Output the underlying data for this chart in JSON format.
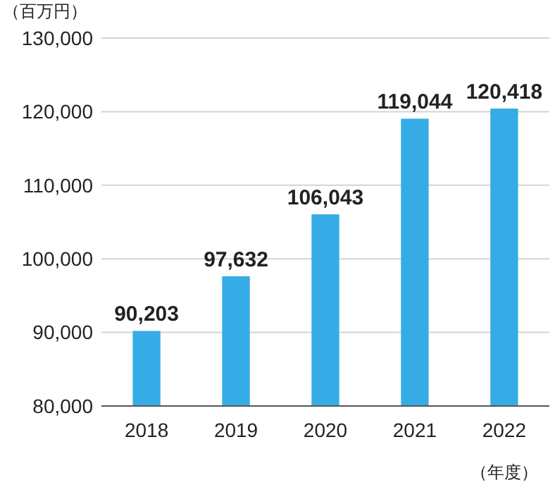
{
  "chart_data": {
    "type": "bar",
    "ylabel": "（百万円）",
    "xlabel": "（年度）",
    "categories": [
      "2018",
      "2019",
      "2020",
      "2021",
      "2022"
    ],
    "values": [
      90203,
      97632,
      106043,
      119044,
      120418
    ],
    "value_labels": [
      "90,203",
      "97,632",
      "106,043",
      "119,044",
      "120,418"
    ],
    "color": "#36ace6",
    "ylim": [
      80000,
      130000
    ],
    "yticks": [
      {
        "value": 80000,
        "label": "80,000"
      },
      {
        "value": 90000,
        "label": "90,000"
      },
      {
        "value": 100000,
        "label": "100,000"
      },
      {
        "value": 110000,
        "label": "110,000"
      },
      {
        "value": 120000,
        "label": "120,000"
      },
      {
        "value": 130000,
        "label": "130,000"
      }
    ],
    "grid": "y"
  }
}
